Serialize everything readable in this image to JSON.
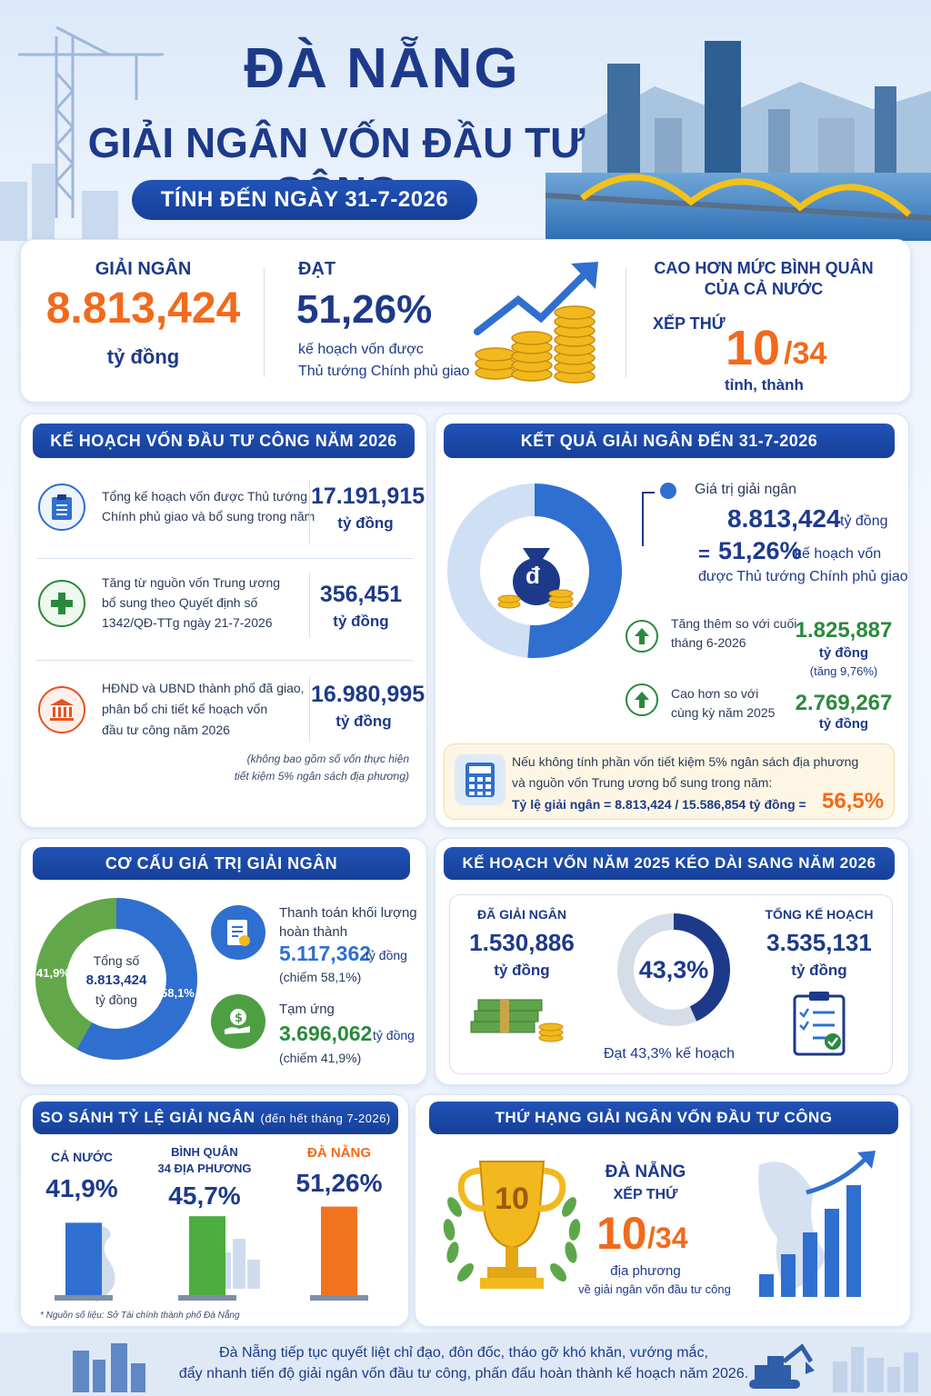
{
  "header": {
    "title_line1": "ĐÀ NẴNG",
    "title_line2": "GIẢI NGÂN VỐN ĐẦU TƯ CÔNG",
    "date_pill": "TÍNH ĐẾN NGÀY 31-7-2026"
  },
  "summary": {
    "disbursed_label": "GIẢI NGÂN",
    "disbursed_value": "8.813,424",
    "disbursed_unit": "tỷ đồng",
    "reach_label": "ĐẠT",
    "reach_value": "51,26%",
    "reach_desc1": "kế hoạch vốn được",
    "reach_desc2": "Thủ tướng Chính phủ giao",
    "avg_line1": "CAO HƠN MỨC BÌNH QUÂN",
    "avg_line2": "CỦA CẢ NƯỚC",
    "rank_label": "XẾP THỨ",
    "rank_value": "10",
    "rank_total": "/34",
    "rank_unit": "tỉnh, thành"
  },
  "plan2026": {
    "heading": "KẾ HOẠCH VỐN ĐẦU TƯ CÔNG NĂM 2026",
    "items": [
      {
        "desc1": "Tổng kế hoạch vốn được Thủ tướng",
        "desc2": "Chính phủ giao và bổ sung trong năm",
        "desc3": "",
        "value": "17.191,915",
        "unit": "tỷ đồng"
      },
      {
        "desc1": "Tăng từ nguồn vốn Trung ương",
        "desc2": "bổ sung theo Quyết định số",
        "desc3": "1342/QĐ-TTg ngày 21-7-2026",
        "value": "356,451",
        "unit": "tỷ đồng"
      },
      {
        "desc1": "HĐND và UBND thành phố đã giao,",
        "desc2": "phân bổ chi tiết kế hoạch vốn",
        "desc3": "đầu tư công năm 2026",
        "value": "16.980,995",
        "unit": "tỷ đồng"
      }
    ],
    "note1": "(không bao gồm số vốn thực hiện",
    "note2": "tiết kiệm 5% ngân sách địa phương)"
  },
  "result": {
    "heading": "KẾT QUẢ GIẢI NGÂN ĐẾN 31-7-2026",
    "value_label": "Giá trị giải ngân",
    "value": "8.813,424",
    "value_unit": "tỷ đồng",
    "eq": "=",
    "pct": "51,26%",
    "pct_desc": "kế hoạch vốn",
    "pct_desc2": "được Thủ tướng Chính phủ giao",
    "donut_pct": 51.26,
    "money_symbol": "đ",
    "inc1_desc1": "Tăng thêm so với cuối",
    "inc1_desc2": "tháng 6-2026",
    "inc1_value": "1.825,887",
    "inc1_unit": "tỷ đồng",
    "inc1_note": "(tăng 9,76%)",
    "inc2_desc1": "Cao hơn so với",
    "inc2_desc2": "cùng kỳ năm 2025",
    "inc2_value": "2.769,267",
    "inc2_unit": "tỷ đồng",
    "note_line1": "Nếu không tính phần vốn tiết kiệm 5% ngân sách địa phương",
    "note_line2": "và nguồn vốn Trung ương bổ sung trong năm:",
    "note_line3": "Tỷ lệ giải ngân = 8.813,424 / 15.586,854 tỷ đồng =",
    "note_pct": "56,5%"
  },
  "structure": {
    "heading": "CƠ CẤU GIÁ TRỊ GIẢI NGÂN",
    "center1": "Tổng số",
    "center2": "8.813,424",
    "center3": "tỷ đồng",
    "blue_pct_label": "58,1%",
    "green_pct_label": "41,9%",
    "blue_pct": 58.1,
    "item1_l1": "Thanh toán khối lượng",
    "item1_l2": "hoàn thành",
    "item1_value": "5.117,362",
    "item1_unit": "tỷ đồng",
    "item1_note": "(chiếm 58,1%)",
    "item2_l1": "Tạm ứng",
    "item2_value": "3.696,062",
    "item2_unit": "tỷ đồng",
    "item2_note": "(chiếm 41,9%)",
    "colors": {
      "blue": "#2f6fd0",
      "green": "#62a84a"
    }
  },
  "extended": {
    "heading": "KẾ HOẠCH VỐN NĂM 2025 KÉO DÀI SANG NĂM 2026",
    "done_label": "ĐÃ GIẢI NGÂN",
    "done_value": "1.530,886",
    "done_unit": "tỷ đồng",
    "pct_label": "43,3%",
    "pct": 43.3,
    "pct_caption": "Đạt 43,3% kế hoạch",
    "total_label": "TỔNG KẾ HOẠCH",
    "total_value": "3.535,131",
    "total_unit": "tỷ đồng"
  },
  "compare": {
    "heading": "SO SÁNH TỶ LỆ GIẢI NGÂN",
    "heading_small": "(đến hết tháng 7-2026)",
    "bars": [
      {
        "label1": "CẢ NƯỚC",
        "label2": "",
        "value_label": "41,9%",
        "value": 41.9,
        "color": "#2f6fd0"
      },
      {
        "label1": "BÌNH QUÂN",
        "label2": "34 ĐỊA PHƯƠNG",
        "value_label": "45,7%",
        "value": 45.7,
        "color": "#4cae3f"
      },
      {
        "label1": "ĐÀ NẴNG",
        "label2": "",
        "value_label": "51,26%",
        "value": 51.26,
        "color": "#f2731f"
      }
    ],
    "source": "* Nguồn số liệu: Sở Tài chính thành phố Đà Nẵng"
  },
  "ranking": {
    "heading": "THỨ HẠNG GIẢI NGÂN VỐN ĐẦU TƯ CÔNG",
    "trophy_number": "10",
    "city": "ĐÀ NẴNG",
    "rank_label": "XẾP THỨ",
    "rank_value": "10",
    "rank_total": "/34",
    "unit": "địa phương",
    "desc": "về giải ngân vốn đầu tư công"
  },
  "footer": {
    "line1": "Đà Nẵng tiếp tục quyết liệt chỉ đạo, đôn đốc, tháo gỡ khó khăn, vướng mắc,",
    "line2": "đẩy nhanh tiến độ giải ngân vốn đầu tư công, phấn đấu hoàn thành kế hoạch năm 2026."
  }
}
